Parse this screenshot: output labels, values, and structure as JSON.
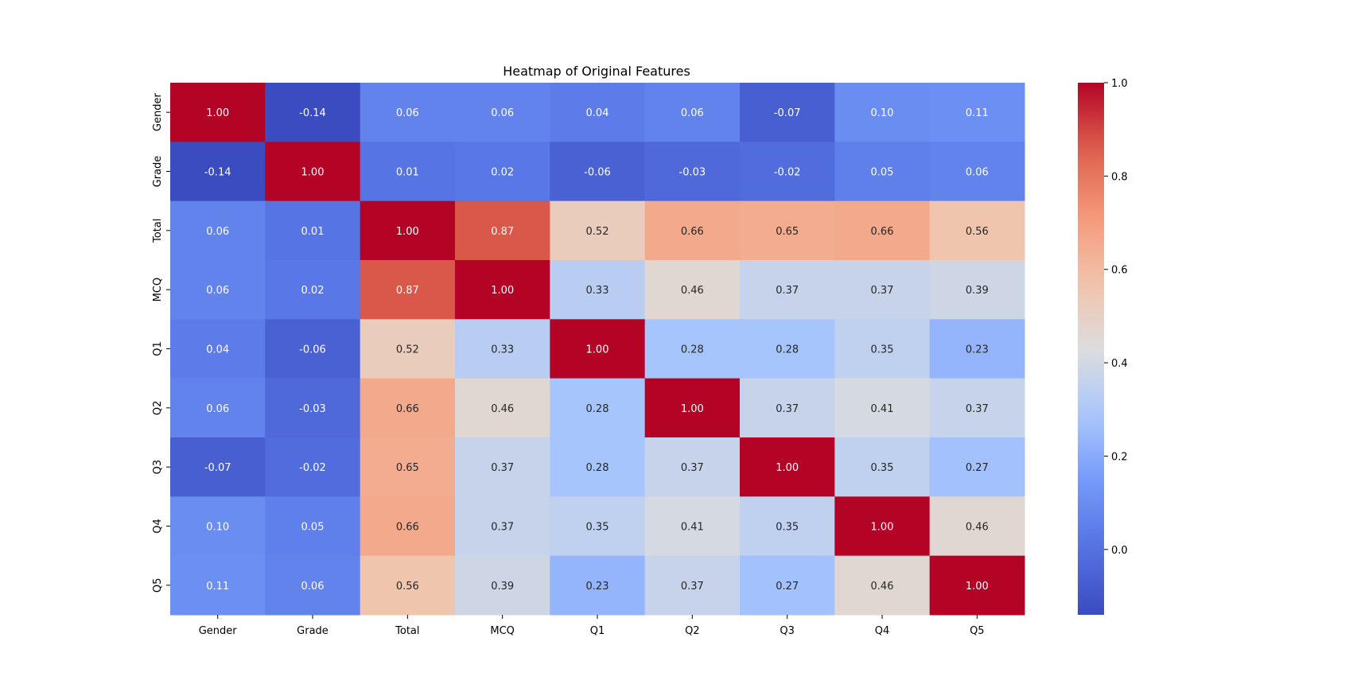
{
  "chart_data": {
    "type": "heatmap",
    "title": "Heatmap of Original Features",
    "xlabel": "",
    "ylabel": "",
    "x_categories": [
      "Gender",
      "Grade",
      "Total",
      "MCQ",
      "Q1",
      "Q2",
      "Q3",
      "Q4",
      "Q5"
    ],
    "y_categories": [
      "Gender",
      "Grade",
      "Total",
      "MCQ",
      "Q1",
      "Q2",
      "Q3",
      "Q4",
      "Q5"
    ],
    "values": [
      [
        1.0,
        -0.14,
        0.06,
        0.06,
        0.04,
        0.06,
        -0.07,
        0.1,
        0.11
      ],
      [
        -0.14,
        1.0,
        0.01,
        0.02,
        -0.06,
        -0.03,
        -0.02,
        0.05,
        0.06
      ],
      [
        0.06,
        0.01,
        1.0,
        0.87,
        0.52,
        0.66,
        0.65,
        0.66,
        0.56
      ],
      [
        0.06,
        0.02,
        0.87,
        1.0,
        0.33,
        0.46,
        0.37,
        0.37,
        0.39
      ],
      [
        0.04,
        -0.06,
        0.52,
        0.33,
        1.0,
        0.28,
        0.28,
        0.35,
        0.23
      ],
      [
        0.06,
        -0.03,
        0.66,
        0.46,
        0.28,
        1.0,
        0.37,
        0.41,
        0.37
      ],
      [
        -0.07,
        -0.02,
        0.65,
        0.37,
        0.28,
        0.37,
        1.0,
        0.35,
        0.27
      ],
      [
        0.1,
        0.05,
        0.66,
        0.37,
        0.35,
        0.41,
        0.35,
        1.0,
        0.46
      ],
      [
        0.11,
        0.06,
        0.56,
        0.39,
        0.23,
        0.37,
        0.27,
        0.46,
        1.0
      ]
    ],
    "value_format": "2 decimals",
    "colormap": "coolwarm",
    "color_range": [
      -0.14,
      1.0
    ],
    "colorbar": {
      "ticks": [
        0.0,
        0.2,
        0.4,
        0.6,
        0.8,
        1.0
      ],
      "tick_labels": [
        "0.0",
        "0.2",
        "0.4",
        "0.6",
        "0.8",
        "1.0"
      ],
      "placement": "right"
    },
    "grid": false,
    "colors": {
      "low": "#3b4cc0",
      "mid": "#dddddd",
      "high": "#b40426",
      "light_text": "#ffffff",
      "dark_text": "#262626"
    }
  }
}
